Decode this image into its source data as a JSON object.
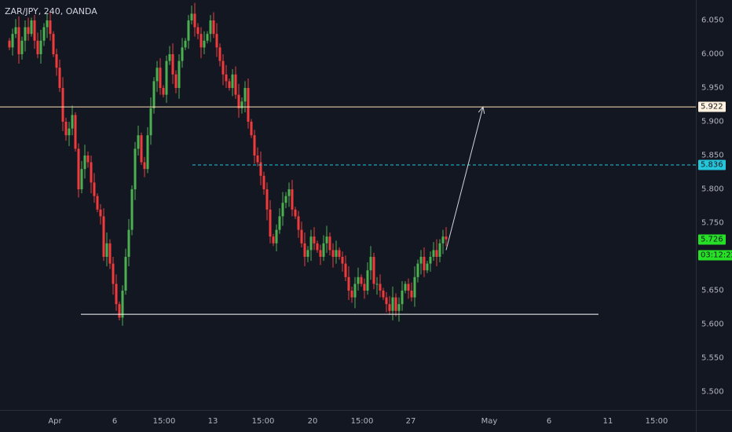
{
  "symbol_title": "ZAR/JPY, 240, OANDA",
  "colors": {
    "background": "#131722",
    "up": "#4caf50",
    "down": "#ef3b3b",
    "support": "#ffffff",
    "resistance": "#ffe0b2",
    "target_dashed": "#26c6da",
    "arrow": "#d1d4dc",
    "badge_green": "#26e026"
  },
  "price_axis": {
    "ticks": [
      "6.050",
      "6.000",
      "5.950",
      "5.900",
      "5.850",
      "5.800",
      "5.750",
      "5.700",
      "5.650",
      "5.600",
      "5.550",
      "5.500"
    ],
    "badges": {
      "resistance": "5.922",
      "target": "5.836",
      "last": "5.726",
      "countdown": "03:12:22"
    }
  },
  "time_axis": {
    "ticks": [
      "Apr",
      "6",
      "15:00",
      "13",
      "15:00",
      "20",
      "15:00",
      "27",
      "May",
      "6",
      "11",
      "15:00"
    ]
  },
  "chart_data": {
    "type": "candlestick",
    "title": "ZAR/JPY, 240, OANDA",
    "ylim": [
      5.47,
      6.075
    ],
    "x_labels": [
      "Apr",
      "6",
      "15:00",
      "13",
      "15:00",
      "20",
      "15:00",
      "27",
      "May",
      "6",
      "11",
      "15:00"
    ],
    "levels": {
      "resistance": 5.922,
      "target": 5.836,
      "support": 5.615,
      "last_price": 5.726
    },
    "projection": {
      "from": 5.71,
      "to": 5.922
    },
    "closes": [
      6.01,
      6.03,
      6.04,
      6.0,
      6.02,
      6.04,
      6.03,
      6.05,
      6.02,
      6.0,
      6.02,
      6.04,
      6.05,
      6.03,
      6.0,
      5.98,
      5.95,
      5.9,
      5.88,
      5.89,
      5.91,
      5.86,
      5.8,
      5.83,
      5.85,
      5.84,
      5.81,
      5.79,
      5.77,
      5.76,
      5.7,
      5.72,
      5.69,
      5.66,
      5.63,
      5.61,
      5.65,
      5.7,
      5.74,
      5.8,
      5.86,
      5.88,
      5.84,
      5.83,
      5.88,
      5.92,
      5.96,
      5.98,
      5.95,
      5.94,
      5.99,
      6.0,
      5.97,
      5.95,
      5.99,
      6.01,
      6.02,
      6.05,
      6.06,
      6.04,
      6.03,
      6.01,
      6.02,
      6.03,
      6.05,
      6.03,
      6.01,
      5.99,
      5.97,
      5.96,
      5.95,
      5.97,
      5.94,
      5.92,
      5.93,
      5.95,
      5.9,
      5.88,
      5.85,
      5.84,
      5.82,
      5.8,
      5.77,
      5.73,
      5.72,
      5.74,
      5.76,
      5.78,
      5.79,
      5.8,
      5.77,
      5.76,
      5.74,
      5.72,
      5.7,
      5.71,
      5.73,
      5.72,
      5.71,
      5.7,
      5.72,
      5.73,
      5.71,
      5.7,
      5.71,
      5.7,
      5.69,
      5.67,
      5.65,
      5.64,
      5.66,
      5.67,
      5.66,
      5.65,
      5.68,
      5.7,
      5.66,
      5.66,
      5.65,
      5.64,
      5.63,
      5.62,
      5.64,
      5.62,
      5.63,
      5.65,
      5.66,
      5.65,
      5.64,
      5.67,
      5.69,
      5.7,
      5.68,
      5.69,
      5.7,
      5.71,
      5.7,
      5.72,
      5.73,
      5.726
    ]
  }
}
